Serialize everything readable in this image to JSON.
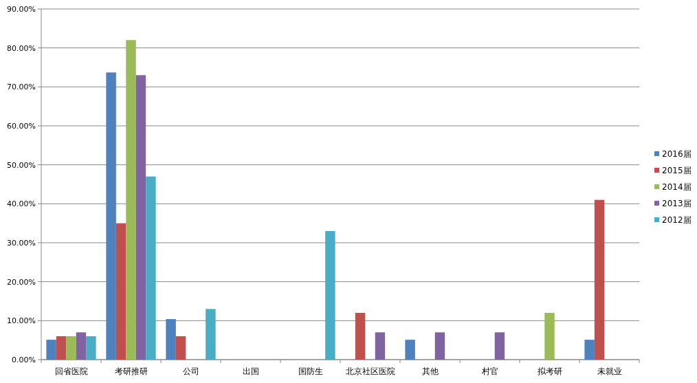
{
  "chart_data": {
    "type": "bar",
    "categories": [
      "回省医院",
      "考研推研",
      "公司",
      "出国",
      "国防生",
      "北京社区医院",
      "其他",
      "村官",
      "拟考研",
      "未就业"
    ],
    "series": [
      {
        "name": "2016届",
        "color": "#4f81bd",
        "values": [
          5.1,
          73.7,
          10.4,
          0,
          0,
          0,
          5.1,
          0,
          0,
          5.1
        ]
      },
      {
        "name": "2015届",
        "color": "#c0504d",
        "values": [
          6,
          35,
          6,
          0,
          0,
          12,
          0,
          0,
          0,
          41
        ]
      },
      {
        "name": "2014届",
        "color": "#9bbb59",
        "values": [
          6,
          82,
          0,
          0,
          0,
          0,
          0,
          0,
          12,
          0
        ]
      },
      {
        "name": "2013届",
        "color": "#8064a2",
        "values": [
          7,
          73,
          0,
          0,
          0,
          7,
          7,
          7,
          0,
          0
        ]
      },
      {
        "name": "2012届",
        "color": "#4bacc6",
        "values": [
          6,
          47,
          13,
          0,
          33,
          0,
          0,
          0,
          0,
          0
        ]
      }
    ],
    "ylim": [
      0,
      90
    ],
    "yticks": [
      {
        "value": 0,
        "label": "0.00%"
      },
      {
        "value": 10,
        "label": "10.00%"
      },
      {
        "value": 20,
        "label": "20.00%"
      },
      {
        "value": 30,
        "label": "30.00%"
      },
      {
        "value": 40,
        "label": "40.00%"
      },
      {
        "value": 50,
        "label": "50.00%"
      },
      {
        "value": 60,
        "label": "60.00%"
      },
      {
        "value": 70,
        "label": "70.00%"
      },
      {
        "value": 80,
        "label": "80.00%"
      },
      {
        "value": 90,
        "label": "90.00%"
      }
    ],
    "grid": "y",
    "legend": "right"
  }
}
